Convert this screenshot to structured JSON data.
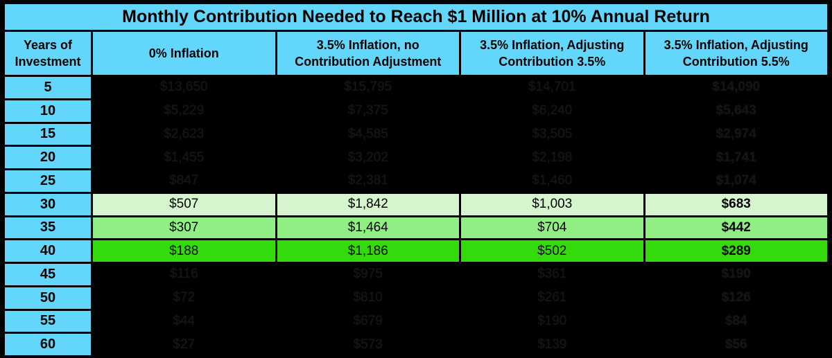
{
  "title": "Monthly Contribution Needed to Reach $1 Million at 10% Annual Return",
  "header": {
    "years": [
      "Years of",
      "Investment"
    ],
    "col1": [
      "0% Inflation"
    ],
    "col2": [
      "3.5% Inflation, no",
      "Contribution Adjustment"
    ],
    "col3": [
      "3.5% Inflation, Adjusting",
      "Contribution 3.5%"
    ],
    "col4": [
      "3.5% Inflation, Adjusting",
      "Contribution 5.5%"
    ]
  },
  "rows": [
    {
      "years": "5",
      "values": [
        "$13,650",
        "$15,795",
        "$14,701",
        "$14,090"
      ],
      "highlight": "dark"
    },
    {
      "years": "10",
      "values": [
        "$5,229",
        "$7,375",
        "$6,240",
        "$5,643"
      ],
      "highlight": "dark"
    },
    {
      "years": "15",
      "values": [
        "$2,623",
        "$4,585",
        "$3,505",
        "$2,974"
      ],
      "highlight": "dark"
    },
    {
      "years": "20",
      "values": [
        "$1,455",
        "$3,202",
        "$2,198",
        "$1,741"
      ],
      "highlight": "dark"
    },
    {
      "years": "25",
      "values": [
        "$847",
        "$2,381",
        "$1,460",
        "$1,074"
      ],
      "highlight": "dark"
    },
    {
      "years": "30",
      "values": [
        "$507",
        "$1,842",
        "$1,003",
        "$683"
      ],
      "highlight": "green-pale"
    },
    {
      "years": "35",
      "values": [
        "$307",
        "$1,464",
        "$704",
        "$442"
      ],
      "highlight": "green-mid"
    },
    {
      "years": "40",
      "values": [
        "$188",
        "$1,186",
        "$502",
        "$289"
      ],
      "highlight": "green-bright"
    },
    {
      "years": "45",
      "values": [
        "$116",
        "$975",
        "$361",
        "$190"
      ],
      "highlight": "dark"
    },
    {
      "years": "50",
      "values": [
        "$72",
        "$810",
        "$261",
        "$126"
      ],
      "highlight": "dark"
    },
    {
      "years": "55",
      "values": [
        "$44",
        "$679",
        "$190",
        "$84"
      ],
      "highlight": "dark"
    },
    {
      "years": "60",
      "values": [
        "$27",
        "$573",
        "$139",
        "$56"
      ],
      "highlight": "dark"
    }
  ],
  "colors": {
    "header_blue": "#63D7FB",
    "border_black": "#000000",
    "dark_row_bg": "#000000",
    "dark_row_text": "#141414",
    "highlight_green_pale": "#D6F5CE",
    "highlight_green_mid": "#90EE85",
    "highlight_green_bright": "#33DB0D"
  }
}
